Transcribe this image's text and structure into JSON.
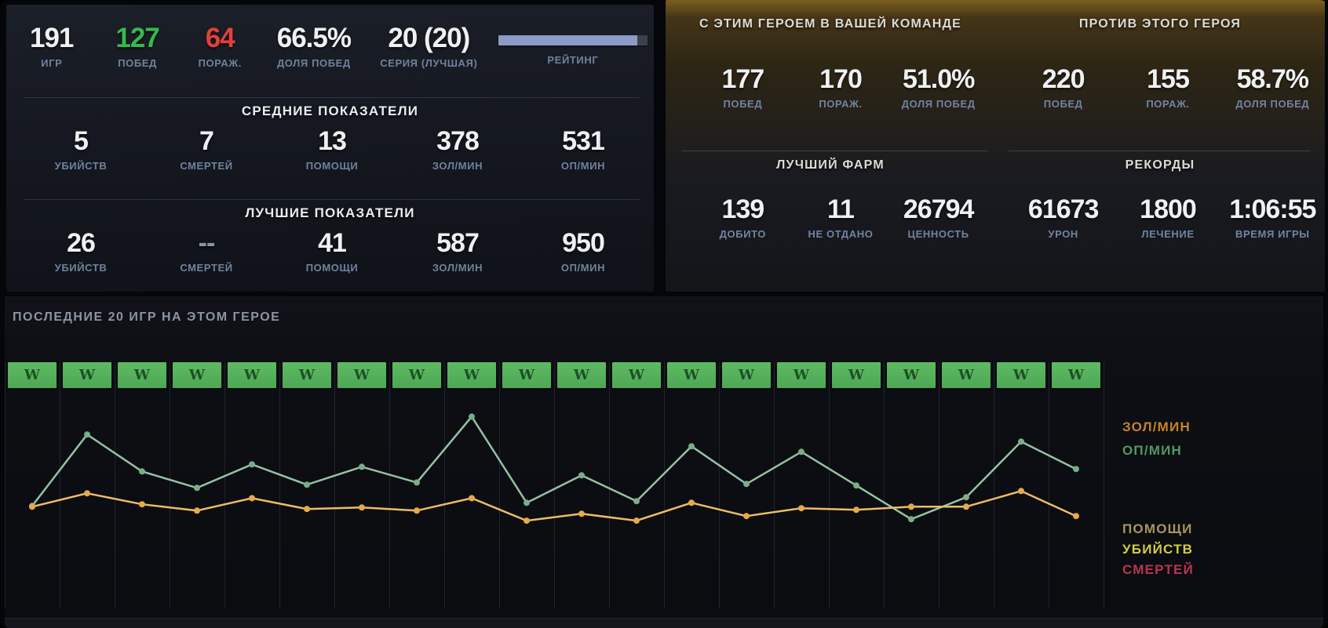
{
  "overview": {
    "stats": [
      {
        "value": "191",
        "label": "ИГР"
      },
      {
        "value": "127",
        "label": "ПОБЕД",
        "color": "#36b94d"
      },
      {
        "value": "64",
        "label": "ПОРАЖ.",
        "color": "#e2403a"
      },
      {
        "value": "66.5%",
        "label": "ДОЛЯ ПОБЕД"
      },
      {
        "value": "20 (20)",
        "label": "СЕРИЯ (ЛУЧШАЯ)"
      }
    ],
    "rating": {
      "label": "РЕЙТИНГ",
      "fill_percent": 93,
      "fill_color": "#8c9bc8"
    }
  },
  "averages": {
    "title": "СРЕДНИЕ ПОКАЗАТЕЛИ",
    "stats": [
      {
        "value": "5",
        "label": "УБИЙСТВ"
      },
      {
        "value": "7",
        "label": "СМЕРТЕЙ"
      },
      {
        "value": "13",
        "label": "ПОМОЩИ"
      },
      {
        "value": "378",
        "label": "ЗОЛ/МИН"
      },
      {
        "value": "531",
        "label": "ОП/МИН"
      }
    ]
  },
  "bests": {
    "title": "ЛУЧШИЕ ПОКАЗАТЕЛИ",
    "stats": [
      {
        "value": "26",
        "label": "УБИЙСТВ"
      },
      {
        "value": "--",
        "label": "СМЕРТЕЙ",
        "color": "#8495aa"
      },
      {
        "value": "41",
        "label": "ПОМОЩИ"
      },
      {
        "value": "587",
        "label": "ЗОЛ/МИН"
      },
      {
        "value": "950",
        "label": "ОП/МИН"
      }
    ]
  },
  "with_hero": {
    "title": "С ЭТИМ ГЕРОЕМ В ВАШЕЙ КОМАНДЕ",
    "stats": [
      {
        "value": "177",
        "label": "ПОБЕД"
      },
      {
        "value": "170",
        "label": "ПОРАЖ."
      },
      {
        "value": "51.0%",
        "label": "ДОЛЯ ПОБЕД"
      }
    ]
  },
  "against_hero": {
    "title": "ПРОТИВ ЭТОГО ГЕРОЯ",
    "stats": [
      {
        "value": "220",
        "label": "ПОБЕД"
      },
      {
        "value": "155",
        "label": "ПОРАЖ."
      },
      {
        "value": "58.7%",
        "label": "ДОЛЯ ПОБЕД"
      }
    ]
  },
  "best_farm": {
    "title": "ЛУЧШИЙ ФАРМ",
    "stats": [
      {
        "value": "139",
        "label": "ДОБИТО"
      },
      {
        "value": "11",
        "label": "НЕ ОТДАНО"
      },
      {
        "value": "26794",
        "label": "ЦЕННОСТЬ"
      }
    ]
  },
  "records": {
    "title": "РЕКОРДЫ",
    "stats": [
      {
        "value": "61673",
        "label": "УРОН"
      },
      {
        "value": "1800",
        "label": "ЛЕЧЕНИЕ"
      },
      {
        "value": "1:06:55",
        "label": "ВРЕМЯ ИГРЫ"
      }
    ]
  },
  "recent": {
    "title": "ПОСЛЕДНИЕ 20 ИГР НА ЭТОМ ГЕРОЕ",
    "results": [
      "W",
      "W",
      "W",
      "W",
      "W",
      "W",
      "W",
      "W",
      "W",
      "W",
      "W",
      "W",
      "W",
      "W",
      "W",
      "W",
      "W",
      "W",
      "W",
      "W"
    ],
    "result_colors": {
      "win_bg": "#54b158",
      "win_glyph": "#1e5127"
    }
  },
  "chart_data": {
    "type": "line",
    "x": [
      1,
      2,
      3,
      4,
      5,
      6,
      7,
      8,
      9,
      10,
      11,
      12,
      13,
      14,
      15,
      16,
      17,
      18,
      19,
      20
    ],
    "xlabel": "",
    "ylabel": "",
    "ylim": [
      380,
      960
    ],
    "grid": "vertical",
    "legend_position": "right",
    "values_estimated_from_pixels": true,
    "series": [
      {
        "key": "gpm",
        "name": "ЗОЛ/МИН",
        "line_color": "#eebb66",
        "marker_color": "#e7a94b",
        "values": [
          467,
          539,
          480,
          446,
          513,
          455,
          463,
          446,
          513,
          392,
          429,
          392,
          488,
          417,
          459,
          450,
          467,
          467,
          551,
          417
        ]
      },
      {
        "key": "xpm",
        "name": "ОП/МИН",
        "line_color": "#95c1a3",
        "marker_color": "#79ad88",
        "values": [
          471,
          854,
          656,
          568,
          694,
          585,
          681,
          597,
          950,
          488,
          635,
          497,
          791,
          589,
          761,
          581,
          400,
          518,
          816,
          669
        ]
      }
    ],
    "legend_primary": [
      {
        "label": "ЗОЛ/МИН",
        "color": "#c8802c"
      },
      {
        "label": "ОП/МИН",
        "color": "#4f9a63"
      }
    ],
    "legend_secondary": [
      {
        "label": "ПОМОЩИ",
        "color": "#a6965e"
      },
      {
        "label": "УБИЙСТВ",
        "color": "#d2cc41"
      },
      {
        "label": "СМЕРТЕЙ",
        "color": "#bb3450"
      }
    ]
  },
  "colors": {
    "wins_green": "#36b94d",
    "losses_red": "#e2403a",
    "label_blue_gray": "#70829e",
    "rating_fill": "#8c9bc8",
    "win_box_green": "#54b158"
  }
}
